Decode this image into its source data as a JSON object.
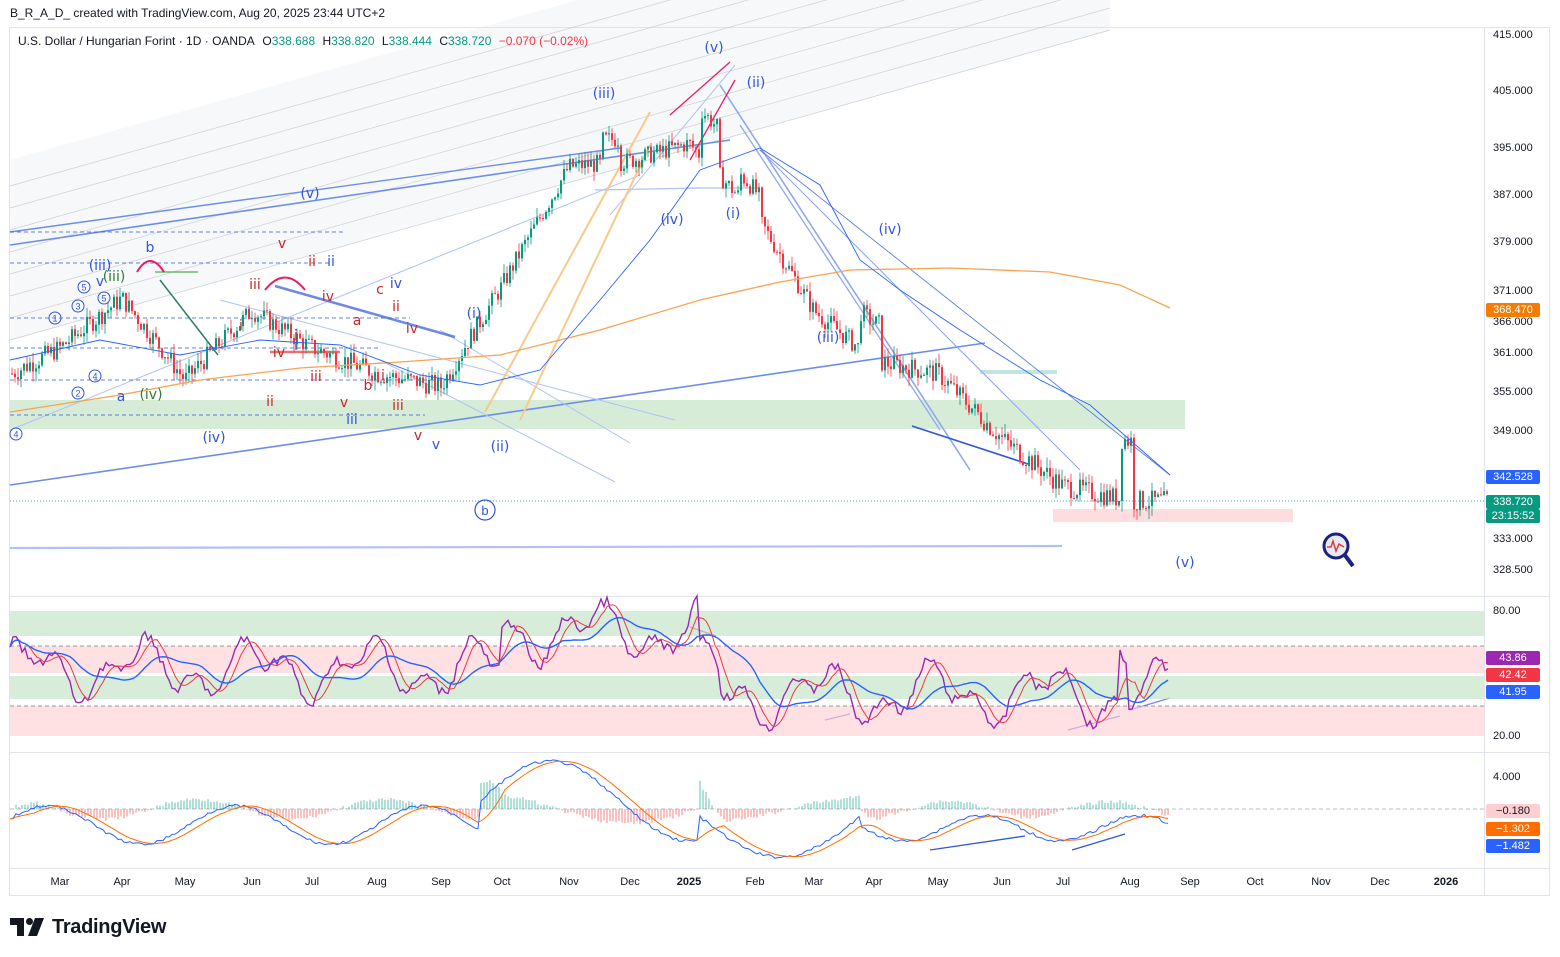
{
  "header": {
    "credit": "B_R_A_D_ created with TradingView.com, Aug 20, 2025 23:44 UTC+2"
  },
  "symbol": {
    "name": "U.S. Dollar / Hungarian Forint · 1D · OANDA",
    "open_label": "O",
    "open": "338.688",
    "high_label": "H",
    "high": "338.820",
    "low_label": "L",
    "low": "338.444",
    "close_label": "C",
    "close": "338.720",
    "change": "−0.070 (−0.02%)"
  },
  "colors": {
    "up": "#089981",
    "down": "#f23645",
    "wave_blue": "#2962ff",
    "ma_short": "#2962ff",
    "ma_long": "#f7a350",
    "rsi": "#9c27b0",
    "rsi_ma": "#f23645",
    "rsi_ma2": "#2962ff",
    "macd": "#2962ff",
    "signal": "#ff6d00",
    "zone_green": "#c8e6c9",
    "zone_red": "#ffcdd2"
  },
  "price_axis": {
    "ticks": [
      "415.000",
      "405.000",
      "395.000",
      "387.000",
      "379.000",
      "371.000",
      "366.000",
      "361.000",
      "355.000",
      "349.000",
      "333.000",
      "328.500"
    ],
    "tags": [
      {
        "value": "368.470",
        "color": "#f57c00"
      },
      {
        "value": "342.528",
        "color": "#2962ff"
      },
      {
        "value": "338.720",
        "color": "#089981"
      },
      {
        "value": "23:15:52",
        "color": "#089981"
      }
    ]
  },
  "rsi_axis": {
    "ticks": [
      "80.00",
      "20.00"
    ],
    "tags": [
      {
        "value": "43.86",
        "color": "#9c27b0"
      },
      {
        "value": "42.42",
        "color": "#f23645"
      },
      {
        "value": "41.95",
        "color": "#2962ff"
      }
    ]
  },
  "macd_axis": {
    "ticks": [
      "4.000"
    ],
    "tags": [
      {
        "value": "−0.180",
        "color": "#ffcdd2",
        "text": "#131722"
      },
      {
        "value": "−1.302",
        "color": "#ff6d00",
        "text": "#ffffff"
      },
      {
        "value": "−1.482",
        "color": "#2962ff",
        "text": "#ffffff"
      }
    ]
  },
  "time_axis": {
    "labels": [
      "Mar",
      "Apr",
      "May",
      "Jun",
      "Jul",
      "Aug",
      "Sep",
      "Oct",
      "Nov",
      "Dec",
      "2025",
      "Feb",
      "Mar",
      "Apr",
      "May",
      "Jun",
      "Jul",
      "Aug",
      "Sep",
      "Oct",
      "Nov",
      "Dec",
      "2026"
    ]
  },
  "chart_data": {
    "type": "candlestick",
    "symbol": "USDHUF",
    "timeframe": "1D",
    "x_range": [
      "2024-02",
      "2026-01"
    ],
    "y_range": [
      325,
      418
    ],
    "monthly_path": [
      {
        "month": "2024-03",
        "close": 362
      },
      {
        "month": "2024-04",
        "close": 370
      },
      {
        "month": "2024-05",
        "close": 357
      },
      {
        "month": "2024-06",
        "close": 368
      },
      {
        "month": "2024-07",
        "close": 362
      },
      {
        "month": "2024-08",
        "close": 358
      },
      {
        "month": "2024-09",
        "close": 356
      },
      {
        "month": "2024-10",
        "close": 372
      },
      {
        "month": "2024-11",
        "close": 392
      },
      {
        "month": "2024-12",
        "close": 393
      },
      {
        "month": "2025-01",
        "close": 396
      },
      {
        "month": "2025-02",
        "close": 384
      },
      {
        "month": "2025-03",
        "close": 368
      },
      {
        "month": "2025-04",
        "close": 360
      },
      {
        "month": "2025-05",
        "close": 358
      },
      {
        "month": "2025-06",
        "close": 348
      },
      {
        "month": "2025-07",
        "close": 341
      },
      {
        "month": "2025-08",
        "close": 338.72
      }
    ],
    "wave_labels": [
      "(v)",
      "(iii)",
      "(ii)",
      "(iv)",
      "(i)",
      "(iv)",
      "(iii)",
      "(i)",
      "(ii)",
      "(v)",
      "(iv)",
      "(iii)",
      "(v)",
      "(iv)",
      "b",
      "iii",
      "ii",
      "iv",
      "c",
      "iv",
      "v",
      "iii",
      "i",
      "ii",
      "v",
      "iii",
      "i",
      "ii",
      "iv",
      "iii",
      "i",
      "v",
      "a",
      "(iv)",
      "v",
      "(iii)",
      "b",
      "ii",
      "iii",
      "i",
      "iv",
      "ii",
      "i",
      "b",
      "a",
      "v",
      "iv",
      "iii",
      "ii",
      "i",
      "(v)",
      "v",
      "ii",
      "v"
    ],
    "rsi_pane": {
      "upper": 80,
      "lower": 20,
      "rsi": 43.86,
      "rsi_ma": 42.42,
      "rsi_ma2": 41.95
    },
    "macd_pane": {
      "histogram": -0.18,
      "signal": -1.302,
      "macd": -1.482
    }
  }
}
